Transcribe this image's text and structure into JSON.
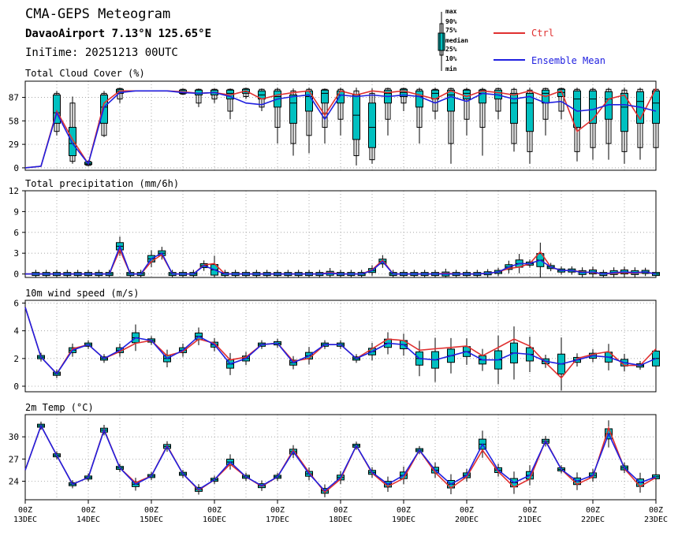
{
  "header": {
    "title": "CMA-GEPS Meteogram",
    "location": "DavaoAirport 7.13°N 125.65°E",
    "init_time": "IniTime: 20251213 00UTC"
  },
  "legend": {
    "box_labels": [
      "max",
      "90%",
      "75%",
      "median",
      "25%",
      "10%",
      "min"
    ],
    "ctrl_label": "Ctrl",
    "mean_label": "Ensemble Mean",
    "ctrl_color": "#e03030",
    "mean_color": "#2020e0",
    "box_color": "#00c0c0"
  },
  "x_axis": {
    "tick_hours": [
      "00Z",
      "00Z",
      "00Z",
      "00Z",
      "00Z",
      "00Z",
      "00Z",
      "00Z",
      "00Z",
      "00Z",
      "00Z"
    ],
    "tick_dates": [
      "13DEC",
      "14DEC",
      "15DEC",
      "16DEC",
      "17DEC",
      "18DEC",
      "19DEC",
      "20DEC",
      "21DEC",
      "22DEC",
      "23DEC"
    ]
  },
  "chart_data": [
    {
      "type": "boxplot-line",
      "title": "Total Cloud Cover (%)",
      "x_unit": "hours since init, 6-hourly steps 0..240",
      "ylim": [
        -3,
        107
      ],
      "yticks": [
        0,
        29,
        58,
        87
      ],
      "ctrl": [
        0,
        2,
        70,
        35,
        5,
        80,
        95,
        95,
        95,
        95,
        94,
        92,
        93,
        90,
        95,
        85,
        90,
        93,
        95,
        65,
        95,
        90,
        95,
        93,
        95,
        90,
        85,
        95,
        88,
        95,
        93,
        90,
        95,
        88,
        95,
        45,
        60,
        85,
        90,
        60,
        98
      ],
      "mean": [
        0,
        2,
        68,
        30,
        5,
        75,
        93,
        95,
        95,
        95,
        93,
        92,
        93,
        88,
        80,
        78,
        85,
        88,
        90,
        60,
        90,
        88,
        90,
        88,
        90,
        88,
        80,
        88,
        82,
        92,
        90,
        85,
        88,
        80,
        82,
        70,
        72,
        78,
        78,
        75,
        70
      ],
      "boxes": [
        {
          "i": 2,
          "min": 40,
          "p10": 45,
          "q1": 55,
          "med": 68,
          "q3": 90,
          "p90": 92,
          "max": 95
        },
        {
          "i": 3,
          "min": 5,
          "p10": 8,
          "q1": 15,
          "med": 30,
          "q3": 50,
          "p90": 80,
          "max": 88
        },
        {
          "i": 4,
          "min": 2,
          "p10": 3,
          "q1": 4,
          "med": 5,
          "q3": 7,
          "p90": 8,
          "max": 9
        },
        {
          "i": 5,
          "min": 38,
          "p10": 40,
          "q1": 55,
          "med": 75,
          "q3": 90,
          "p90": 92,
          "max": 95
        },
        {
          "i": 6,
          "min": 80,
          "p10": 85,
          "q1": 92,
          "med": 95,
          "q3": 97,
          "p90": 98,
          "max": 99
        },
        {
          "i": 10,
          "min": 90,
          "p10": 91,
          "q1": 92,
          "med": 93,
          "q3": 96,
          "p90": 97,
          "max": 98
        },
        {
          "i": 11,
          "min": 75,
          "p10": 80,
          "q1": 90,
          "med": 92,
          "q3": 96,
          "p90": 97,
          "max": 98
        },
        {
          "i": 12,
          "min": 80,
          "p10": 85,
          "q1": 90,
          "med": 93,
          "q3": 96,
          "p90": 97,
          "max": 98
        },
        {
          "i": 13,
          "min": 60,
          "p10": 70,
          "q1": 85,
          "med": 92,
          "q3": 96,
          "p90": 97,
          "max": 98
        },
        {
          "i": 14,
          "min": 85,
          "p10": 88,
          "q1": 92,
          "med": 94,
          "q3": 97,
          "p90": 98,
          "max": 99
        },
        {
          "i": 15,
          "min": 70,
          "p10": 75,
          "q1": 85,
          "med": 90,
          "q3": 95,
          "p90": 97,
          "max": 98
        },
        {
          "i": 16,
          "min": 30,
          "p10": 50,
          "q1": 75,
          "med": 88,
          "q3": 95,
          "p90": 97,
          "max": 99
        },
        {
          "i": 17,
          "min": 15,
          "p10": 30,
          "q1": 55,
          "med": 80,
          "q3": 90,
          "p90": 95,
          "max": 98
        },
        {
          "i": 18,
          "min": 18,
          "p10": 40,
          "q1": 70,
          "med": 88,
          "q3": 95,
          "p90": 97,
          "max": 99
        },
        {
          "i": 19,
          "min": 30,
          "p10": 50,
          "q1": 80,
          "med": 92,
          "q3": 96,
          "p90": 97,
          "max": 98
        },
        {
          "i": 20,
          "min": 40,
          "p10": 60,
          "q1": 80,
          "med": 90,
          "q3": 95,
          "p90": 97,
          "max": 99
        },
        {
          "i": 21,
          "min": 3,
          "p10": 15,
          "q1": 35,
          "med": 65,
          "q3": 90,
          "p90": 95,
          "max": 99
        },
        {
          "i": 22,
          "min": 5,
          "p10": 10,
          "q1": 25,
          "med": 50,
          "q3": 80,
          "p90": 92,
          "max": 98
        },
        {
          "i": 23,
          "min": 40,
          "p10": 60,
          "q1": 80,
          "med": 92,
          "q3": 96,
          "p90": 98,
          "max": 99
        },
        {
          "i": 24,
          "min": 70,
          "p10": 80,
          "q1": 88,
          "med": 93,
          "q3": 97,
          "p90": 98,
          "max": 99
        },
        {
          "i": 25,
          "min": 30,
          "p10": 50,
          "q1": 75,
          "med": 88,
          "q3": 95,
          "p90": 97,
          "max": 99
        },
        {
          "i": 26,
          "min": 60,
          "p10": 70,
          "q1": 85,
          "med": 92,
          "q3": 96,
          "p90": 97,
          "max": 99
        },
        {
          "i": 27,
          "min": 5,
          "p10": 30,
          "q1": 70,
          "med": 90,
          "q3": 96,
          "p90": 98,
          "max": 99
        },
        {
          "i": 28,
          "min": 40,
          "p10": 60,
          "q1": 85,
          "med": 92,
          "q3": 96,
          "p90": 97,
          "max": 99
        },
        {
          "i": 29,
          "min": 15,
          "p10": 50,
          "q1": 80,
          "med": 92,
          "q3": 96,
          "p90": 97,
          "max": 99
        },
        {
          "i": 30,
          "min": 60,
          "p10": 70,
          "q1": 85,
          "med": 93,
          "q3": 96,
          "p90": 98,
          "max": 99
        },
        {
          "i": 31,
          "min": 20,
          "p10": 30,
          "q1": 55,
          "med": 80,
          "q3": 92,
          "p90": 97,
          "max": 99
        },
        {
          "i": 32,
          "min": 5,
          "p10": 20,
          "q1": 45,
          "med": 80,
          "q3": 92,
          "p90": 96,
          "max": 99
        },
        {
          "i": 33,
          "min": 40,
          "p10": 60,
          "q1": 80,
          "med": 92,
          "q3": 96,
          "p90": 98,
          "max": 99
        },
        {
          "i": 34,
          "min": 60,
          "p10": 70,
          "q1": 88,
          "med": 93,
          "q3": 97,
          "p90": 98,
          "max": 99
        },
        {
          "i": 35,
          "min": 8,
          "p10": 20,
          "q1": 50,
          "med": 85,
          "q3": 95,
          "p90": 97,
          "max": 99
        },
        {
          "i": 36,
          "min": 10,
          "p10": 25,
          "q1": 55,
          "med": 85,
          "q3": 95,
          "p90": 97,
          "max": 99
        },
        {
          "i": 37,
          "min": 10,
          "p10": 30,
          "q1": 60,
          "med": 85,
          "q3": 94,
          "p90": 97,
          "max": 99
        },
        {
          "i": 38,
          "min": 5,
          "p10": 20,
          "q1": 45,
          "med": 75,
          "q3": 92,
          "p90": 96,
          "max": 99
        },
        {
          "i": 39,
          "min": 10,
          "p10": 25,
          "q1": 55,
          "med": 82,
          "q3": 94,
          "p90": 97,
          "max": 99
        },
        {
          "i": 40,
          "min": 5,
          "p10": 25,
          "q1": 55,
          "med": 80,
          "q3": 95,
          "p90": 97,
          "max": 99
        }
      ]
    },
    {
      "type": "boxplot-line",
      "title": "Total precipitation (mm/6h)",
      "ylim": [
        -0.5,
        12
      ],
      "yticks": [
        0,
        3,
        6,
        9,
        12
      ],
      "ctrl": [
        0,
        0,
        0,
        0,
        0,
        0,
        0,
        0,
        0,
        3.5,
        0,
        0,
        1.8,
        2.8,
        0,
        0,
        0,
        1.3,
        1.5,
        0,
        0,
        0,
        0,
        0,
        0,
        0,
        0,
        0,
        0,
        0.2,
        0,
        0,
        0,
        0.6,
        2.0,
        0,
        0,
        0,
        0,
        0,
        0.1,
        0,
        0,
        0,
        0.1,
        0.3,
        0.8,
        1.0,
        1.5,
        3.2,
        1.0,
        0.5,
        0.5,
        0.3,
        0.2,
        0,
        0.1,
        0.2,
        0.1,
        0.3,
        0
      ],
      "mean": [
        0,
        0,
        0,
        0,
        0,
        0,
        0,
        0,
        0,
        4.0,
        0,
        0,
        2.2,
        3.0,
        0,
        0,
        0,
        1.2,
        0.6,
        0,
        0,
        0,
        0,
        0,
        0,
        0,
        0,
        0,
        0,
        0.1,
        0,
        0,
        0,
        0.5,
        1.8,
        0,
        0,
        0,
        0,
        0,
        0,
        0,
        0,
        0,
        0.1,
        0.3,
        1.0,
        1.5,
        1.5,
        2.0,
        1.0,
        0.5,
        0.5,
        0.2,
        0.3,
        0,
        0.2,
        0.3,
        0.2,
        0.3,
        0
      ],
      "boxes": []
    },
    {
      "type": "boxplot-line",
      "title": "10m wind speed (m/s)",
      "ylim": [
        -0.4,
        6.2
      ],
      "yticks": [
        0,
        2,
        4,
        6
      ],
      "ctrl": [
        5.7,
        2.1,
        0.9,
        2.7,
        3.0,
        2.0,
        2.5,
        3.1,
        3.3,
        2.2,
        2.5,
        3.4,
        3.1,
        1.9,
        2.1,
        3.0,
        3.1,
        1.8,
        2.0,
        3.0,
        3.0,
        2.0,
        2.7,
        3.4,
        3.3,
        2.6,
        2.7,
        2.8,
        2.9,
        2.2,
        2.8,
        3.4,
        2.9,
        1.7,
        0.6,
        2.0,
        2.3,
        2.5,
        1.5,
        1.5,
        2.7
      ],
      "mean": [
        5.7,
        2.1,
        0.9,
        2.6,
        3.0,
        2.0,
        2.6,
        3.5,
        3.3,
        2.0,
        2.6,
        3.6,
        3.0,
        1.6,
        2.0,
        3.0,
        3.1,
        1.7,
        2.2,
        3.0,
        3.0,
        2.0,
        2.5,
        3.1,
        3.0,
        2.0,
        1.9,
        2.2,
        2.5,
        1.9,
        1.9,
        2.4,
        2.3,
        1.8,
        1.6,
        1.9,
        2.2,
        2.1,
        1.7,
        1.5,
        2.0
      ],
      "boxes": []
    },
    {
      "type": "boxplot-line",
      "title": "2m Temp (°C)",
      "ylim": [
        21.5,
        33
      ],
      "yticks": [
        24,
        27,
        30
      ],
      "ctrl": [
        25.5,
        31.5,
        27.5,
        23.6,
        24.5,
        31,
        25.8,
        23.8,
        24.7,
        28.8,
        25,
        22.8,
        24.2,
        26.3,
        24.6,
        23.3,
        24.6,
        28.2,
        25.2,
        22.5,
        24.3,
        28.8,
        25.1,
        23.3,
        24.4,
        28.2,
        25.2,
        23.1,
        24.6,
        28.2,
        25.3,
        23.2,
        24.3,
        29.5,
        25.6,
        23.6,
        24.6,
        31.2,
        25.7,
        23.3,
        24.5
      ],
      "mean": [
        25.5,
        31.5,
        27.5,
        23.6,
        24.5,
        30.9,
        25.8,
        23.6,
        24.7,
        28.7,
        25,
        22.9,
        24.2,
        26.6,
        24.6,
        23.4,
        24.6,
        28,
        25,
        22.7,
        24.5,
        28.8,
        25.2,
        23.6,
        24.8,
        28.2,
        25.5,
        23.6,
        24.8,
        29,
        25.5,
        23.8,
        24.8,
        29.4,
        25.6,
        24,
        24.8,
        30.4,
        25.8,
        23.8,
        24.6
      ],
      "boxes": []
    }
  ]
}
